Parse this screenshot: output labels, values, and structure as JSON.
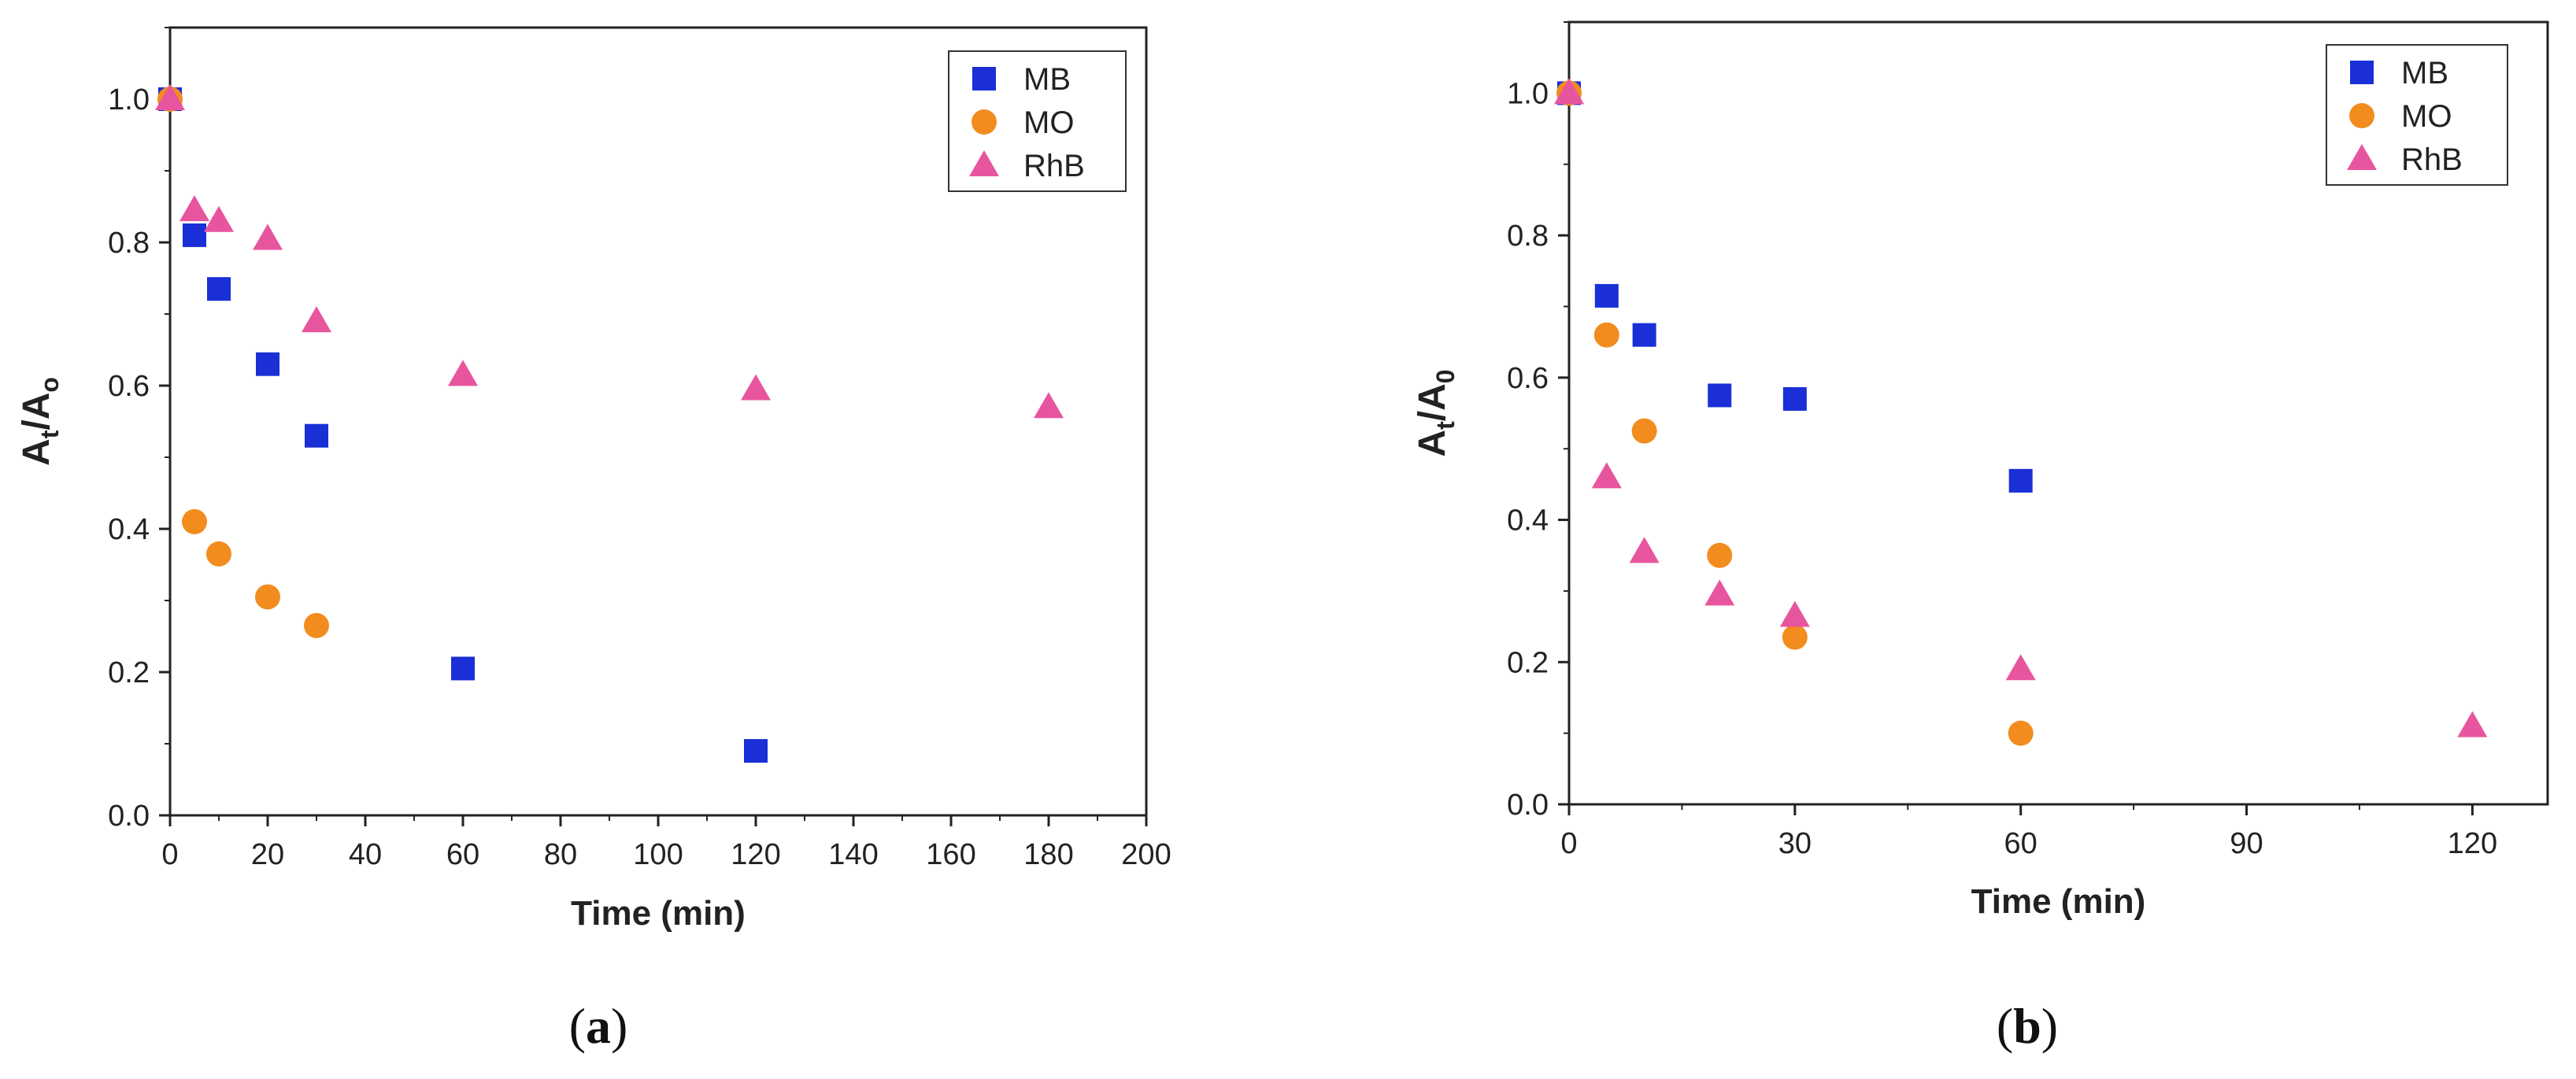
{
  "chart_data": [
    {
      "type": "scatter",
      "caption_letter": "a",
      "xlabel": "Time (min)",
      "ylabel": {
        "main": "A",
        "sub1": "t",
        "slash": "/A",
        "sub2": "o"
      },
      "xlim": [
        0,
        200
      ],
      "ylim": [
        0,
        1.1
      ],
      "xticks": [
        0,
        20,
        40,
        60,
        80,
        100,
        120,
        140,
        160,
        180,
        200
      ],
      "yticks": [
        0.0,
        0.2,
        0.4,
        0.6,
        0.8,
        1.0
      ],
      "ytick_labels": [
        "0.0",
        "0.2",
        "0.4",
        "0.6",
        "0.8",
        "1.0"
      ],
      "legend_position": "top-right",
      "series": [
        {
          "name": "MB",
          "marker": "square",
          "color": "#1a2fd6",
          "points": [
            [
              0,
              1.0
            ],
            [
              5,
              0.81
            ],
            [
              10,
              0.735
            ],
            [
              20,
              0.63
            ],
            [
              30,
              0.53
            ],
            [
              60,
              0.205
            ],
            [
              120,
              0.09
            ]
          ]
        },
        {
          "name": "MO",
          "marker": "circle",
          "color": "#f28c1e",
          "points": [
            [
              0,
              1.0
            ],
            [
              5,
              0.41
            ],
            [
              10,
              0.365
            ],
            [
              20,
              0.305
            ],
            [
              30,
              0.265
            ]
          ]
        },
        {
          "name": "RhB",
          "marker": "triangle",
          "color": "#e8559f",
          "points": [
            [
              0,
              1.0
            ],
            [
              5,
              0.845
            ],
            [
              10,
              0.83
            ],
            [
              20,
              0.805
            ],
            [
              30,
              0.69
            ],
            [
              60,
              0.615
            ],
            [
              120,
              0.595
            ],
            [
              180,
              0.57
            ]
          ]
        }
      ]
    },
    {
      "type": "scatter",
      "caption_letter": "b",
      "xlabel": "Time (min)",
      "ylabel": {
        "main": "A",
        "sub1": "t",
        "slash": "/A",
        "sub2": "0"
      },
      "xlim": [
        0,
        130
      ],
      "ylim": [
        0,
        1.1
      ],
      "xticks": [
        0,
        30,
        60,
        90,
        120
      ],
      "yticks": [
        0.0,
        0.2,
        0.4,
        0.6,
        0.8,
        1.0
      ],
      "ytick_labels": [
        "0.0",
        "0.2",
        "0.4",
        "0.6",
        "0.8",
        "1.0"
      ],
      "legend_position": "top-right",
      "series": [
        {
          "name": "MB",
          "marker": "square",
          "color": "#1a2fd6",
          "points": [
            [
              0,
              1.0
            ],
            [
              5,
              0.715
            ],
            [
              10,
              0.66
            ],
            [
              20,
              0.575
            ],
            [
              30,
              0.57
            ],
            [
              60,
              0.455
            ]
          ]
        },
        {
          "name": "MO",
          "marker": "circle",
          "color": "#f28c1e",
          "points": [
            [
              0,
              1.0
            ],
            [
              5,
              0.66
            ],
            [
              10,
              0.525
            ],
            [
              20,
              0.35
            ],
            [
              30,
              0.235
            ],
            [
              60,
              0.1
            ]
          ]
        },
        {
          "name": "RhB",
          "marker": "triangle",
          "color": "#e8559f",
          "points": [
            [
              0,
              1.0
            ],
            [
              5,
              0.46
            ],
            [
              10,
              0.355
            ],
            [
              20,
              0.295
            ],
            [
              30,
              0.265
            ],
            [
              60,
              0.19
            ],
            [
              120,
              0.11
            ]
          ]
        }
      ]
    }
  ]
}
